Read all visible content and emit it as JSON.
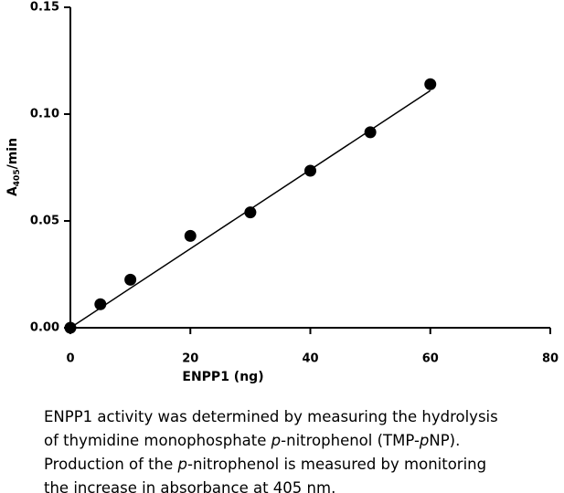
{
  "chart_data": {
    "type": "scatter",
    "x_label": "ENPP1 (ng)",
    "y_label": {
      "main": "A",
      "subscript": "405",
      "suffix": "/min"
    },
    "x": [
      0,
      5,
      10,
      20,
      30,
      40,
      50,
      60
    ],
    "values": [
      0,
      0.011,
      0.0225,
      0.043,
      0.054,
      0.0735,
      0.0915,
      0.114
    ],
    "color": "#000000",
    "fit_line": {
      "x": [
        0,
        60
      ],
      "values": [
        0,
        0.111
      ]
    },
    "xlim": [
      0,
      80
    ],
    "xticks": [
      0,
      20,
      40,
      60,
      80
    ],
    "ylim": [
      0,
      0.15
    ],
    "yticks": [
      {
        "value": 0,
        "label": "0.00"
      },
      0.05,
      {
        "value": 0.1,
        "label": "0.10"
      },
      0.15
    ],
    "grid": false
  },
  "caption": {
    "lines": [
      [
        {
          "text": "ENPP1 activity was determined by measuring the hydrolysis"
        }
      ],
      [
        {
          "text": "of thymidine monophosphate "
        },
        {
          "text": "p",
          "italic": true
        },
        {
          "text": "-nitrophenol (TMP-"
        },
        {
          "text": "p",
          "italic": true
        },
        {
          "text": "NP)."
        }
      ],
      [
        {
          "text": "Production of the "
        },
        {
          "text": "p",
          "italic": true
        },
        {
          "text": "-nitrophenol is measured by monitoring"
        }
      ],
      [
        {
          "text": "the increase in absorbance at 405 nm."
        }
      ]
    ]
  }
}
